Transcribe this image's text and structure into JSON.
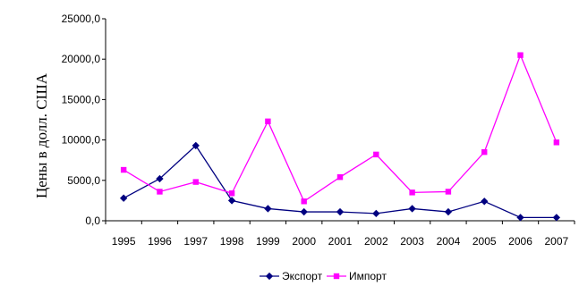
{
  "chart_data": {
    "type": "line",
    "title": "",
    "xlabel": "",
    "ylabel": "Цены в долл. США",
    "categories": [
      "1995",
      "1996",
      "1997",
      "1998",
      "1999",
      "2000",
      "2001",
      "2002",
      "2003",
      "2004",
      "2005",
      "2006",
      "2007"
    ],
    "y_ticks": [
      "0,0",
      "5000,0",
      "10000,0",
      "15000,0",
      "20000,0",
      "25000,0"
    ],
    "ylim": [
      0,
      25000
    ],
    "grid": false,
    "legend_position": "bottom",
    "series": [
      {
        "name": "Экспорт",
        "color": "#000080",
        "marker": "diamond",
        "values": [
          2800,
          5200,
          9300,
          2500,
          1500,
          1100,
          1100,
          900,
          1500,
          1100,
          2400,
          400,
          400
        ]
      },
      {
        "name": "Импорт",
        "color": "#FF00FF",
        "marker": "square",
        "values": [
          6300,
          3600,
          4800,
          3400,
          12300,
          2400,
          5400,
          8200,
          3500,
          3600,
          8500,
          20500,
          9700
        ]
      }
    ]
  }
}
